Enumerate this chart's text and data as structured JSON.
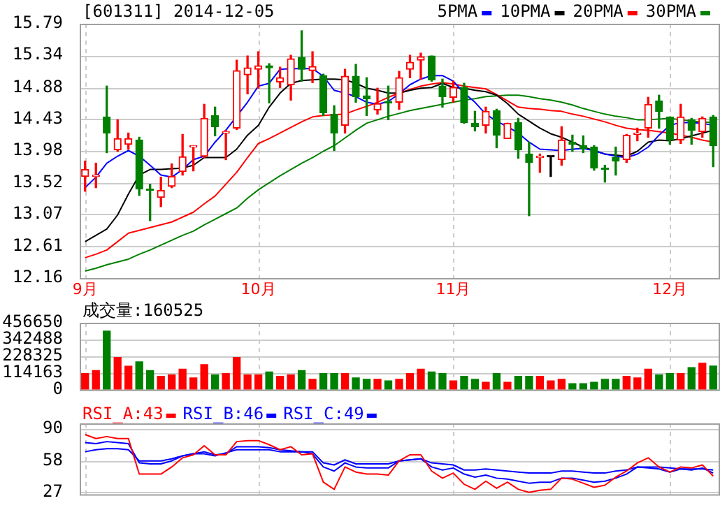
{
  "chart_data": [
    {
      "type": "candlestick",
      "title": "[601311] 2014-12-05",
      "categories": [
        "9月",
        null,
        null,
        null,
        null,
        null,
        null,
        null,
        null,
        null,
        null,
        null,
        null,
        null,
        null,
        null,
        "10月",
        null,
        null,
        null,
        null,
        null,
        null,
        null,
        null,
        null,
        null,
        null,
        null,
        null,
        null,
        null,
        null,
        null,
        "11月",
        null,
        null,
        null,
        null,
        null,
        null,
        null,
        null,
        null,
        null,
        null,
        null,
        null,
        null,
        null,
        null,
        null,
        null,
        null,
        "12月",
        null,
        null,
        null,
        null
      ],
      "ohlc": [
        [
          13.61,
          13.83,
          13.4,
          13.71
        ],
        [
          13.61,
          13.8,
          13.45,
          13.63
        ],
        [
          14.46,
          14.9,
          13.95,
          14.23
        ],
        [
          13.99,
          14.42,
          13.97,
          14.15
        ],
        [
          14.07,
          14.23,
          14.0,
          14.15
        ],
        [
          14.13,
          14.17,
          13.34,
          13.43
        ],
        [
          13.42,
          13.5,
          12.98,
          13.41
        ],
        [
          13.31,
          13.6,
          13.18,
          13.41
        ],
        [
          13.47,
          13.79,
          13.45,
          13.61
        ],
        [
          13.68,
          14.21,
          13.63,
          13.89
        ],
        [
          14.03,
          14.05,
          13.69,
          14.05
        ],
        [
          13.9,
          14.64,
          13.88,
          14.44
        ],
        [
          14.48,
          14.6,
          14.19,
          14.32
        ],
        [
          14.23,
          14.27,
          13.85,
          14.25
        ],
        [
          14.3,
          15.27,
          14.28,
          15.12
        ],
        [
          15.06,
          15.33,
          14.79,
          15.16
        ],
        [
          15.14,
          15.39,
          14.87,
          15.19
        ],
        [
          15.19,
          15.22,
          14.66,
          15.16
        ],
        [
          14.96,
          15.17,
          14.88,
          15.02
        ],
        [
          14.92,
          15.34,
          14.7,
          15.29
        ],
        [
          15.31,
          15.69,
          14.97,
          15.14
        ],
        [
          15.12,
          15.39,
          14.95,
          15.18
        ],
        [
          15.05,
          15.07,
          14.48,
          14.52
        ],
        [
          14.5,
          14.62,
          13.98,
          14.23
        ],
        [
          14.34,
          15.14,
          14.23,
          15.04
        ],
        [
          15.04,
          15.21,
          14.67,
          14.75
        ],
        [
          14.76,
          15.02,
          14.48,
          14.72
        ],
        [
          14.56,
          14.87,
          14.5,
          14.65
        ],
        [
          14.68,
          14.9,
          14.42,
          14.66
        ],
        [
          14.67,
          15.11,
          14.57,
          15.02
        ],
        [
          15.14,
          15.34,
          15.02,
          15.24
        ],
        [
          15.27,
          15.37,
          15.0,
          15.32
        ],
        [
          15.33,
          15.33,
          14.97,
          14.99
        ],
        [
          14.9,
          15.0,
          14.6,
          14.75
        ],
        [
          14.74,
          14.97,
          14.67,
          14.88
        ],
        [
          14.88,
          14.94,
          14.37,
          14.38
        ],
        [
          14.37,
          14.54,
          14.26,
          14.32
        ],
        [
          14.34,
          14.6,
          14.23,
          14.54
        ],
        [
          14.55,
          14.57,
          14.02,
          14.2
        ],
        [
          14.15,
          14.37,
          14.15,
          14.37
        ],
        [
          14.38,
          14.44,
          13.87,
          13.99
        ],
        [
          13.93,
          14.1,
          13.05,
          13.81
        ],
        [
          13.88,
          13.93,
          13.67,
          13.9
        ],
        [
          13.89,
          13.9,
          13.61,
          13.89
        ],
        [
          13.85,
          14.32,
          13.77,
          14.13
        ],
        [
          14.1,
          14.2,
          13.97,
          14.07
        ],
        [
          14.05,
          14.19,
          13.95,
          14.01
        ],
        [
          14.03,
          14.05,
          13.7,
          13.73
        ],
        [
          13.72,
          13.77,
          13.53,
          13.71
        ],
        [
          13.88,
          14.03,
          13.63,
          13.83
        ],
        [
          13.85,
          14.21,
          13.81,
          14.2
        ],
        [
          14.21,
          14.3,
          14.12,
          14.22
        ],
        [
          14.3,
          14.74,
          14.17,
          14.64
        ],
        [
          14.69,
          14.77,
          14.3,
          14.54
        ],
        [
          14.46,
          14.46,
          14.07,
          14.13
        ],
        [
          14.13,
          14.64,
          14.08,
          14.46
        ],
        [
          14.42,
          14.44,
          14.07,
          14.27
        ],
        [
          14.25,
          14.46,
          14.17,
          14.44
        ],
        [
          14.46,
          14.48,
          13.75,
          14.05
        ]
      ],
      "colors": [
        "#ff0000",
        "#ff0000",
        "#008000",
        "#ff0000",
        "#ff0000",
        "#008000",
        "#008000",
        "#ff0000",
        "#ff0000",
        "#ff0000",
        "#ff0000",
        "#ff0000",
        "#008000",
        "#ff0000",
        "#ff0000",
        "#ff0000",
        "#ff0000",
        "#008000",
        "#ff0000",
        "#ff0000",
        "#008000",
        "#ff0000",
        "#008000",
        "#008000",
        "#ff0000",
        "#008000",
        "#008000",
        "#ff0000",
        "#008000",
        "#ff0000",
        "#ff0000",
        "#ff0000",
        "#008000",
        "#008000",
        "#ff0000",
        "#008000",
        "#008000",
        "#ff0000",
        "#008000",
        "#ff0000",
        "#008000",
        "#008000",
        "#ff0000",
        "#000000",
        "#ff0000",
        "#008000",
        "#008000",
        "#008000",
        "#008000",
        "#008000",
        "#ff0000",
        "#ff0000",
        "#ff0000",
        "#008000",
        "#008000",
        "#ff0000",
        "#008000",
        "#ff0000",
        "#008000"
      ],
      "series": [
        {
          "type": "line",
          "name": "5PMA",
          "color": "#0000ff",
          "values": [
            13.45,
            13.6,
            13.8,
            13.9,
            13.98,
            13.9,
            13.77,
            13.63,
            13.6,
            13.71,
            13.85,
            13.9,
            14.1,
            14.27,
            14.47,
            14.67,
            14.9,
            14.94,
            15.14,
            15.15,
            15.15,
            15.15,
            15.04,
            14.84,
            14.8,
            14.75,
            14.67,
            14.64,
            14.68,
            14.79,
            14.92,
            15.0,
            15.05,
            15.05,
            14.97,
            14.8,
            14.67,
            14.5,
            14.4,
            14.32,
            14.23,
            14.1,
            14.0,
            13.99,
            13.98,
            14.0,
            14.01,
            13.98,
            13.93,
            13.9,
            13.88,
            13.93,
            14.03,
            14.2,
            14.34,
            14.38,
            14.38,
            14.37,
            14.34
          ]
        },
        {
          "type": "line",
          "name": "10PMA",
          "color": "#000000",
          "values": [
            12.68,
            12.77,
            12.86,
            13.06,
            13.36,
            13.63,
            13.71,
            13.71,
            13.72,
            13.73,
            13.77,
            13.88,
            13.88,
            13.88,
            14.0,
            14.2,
            14.34,
            14.6,
            14.8,
            14.94,
            14.98,
            14.99,
            15.0,
            15.0,
            14.99,
            14.94,
            14.87,
            14.84,
            14.8,
            14.8,
            14.84,
            14.87,
            14.88,
            14.94,
            14.88,
            14.87,
            14.84,
            14.82,
            14.77,
            14.65,
            14.5,
            14.4,
            14.3,
            14.22,
            14.17,
            14.1,
            14.03,
            13.98,
            13.93,
            null,
            13.9,
            13.97,
            14.1,
            14.13,
            14.12,
            14.15,
            14.19,
            14.23,
            14.27
          ]
        },
        {
          "type": "line",
          "name": "20PMA",
          "color": "#ff0000",
          "values": [
            12.45,
            12.5,
            12.56,
            12.68,
            12.8,
            12.84,
            12.88,
            12.92,
            12.96,
            13.03,
            13.1,
            13.22,
            13.33,
            13.5,
            13.67,
            13.88,
            14.08,
            14.15,
            14.23,
            14.31,
            14.39,
            14.46,
            14.48,
            14.49,
            14.5,
            14.56,
            14.61,
            14.67,
            14.74,
            14.8,
            14.85,
            14.9,
            14.93,
            14.95,
            14.93,
            14.9,
            14.88,
            14.86,
            14.78,
            14.69,
            14.6,
            14.58,
            14.57,
            14.55,
            14.54,
            14.5,
            14.47,
            14.43,
            14.39,
            14.34,
            14.3,
            14.28,
            14.27,
            14.25,
            14.23,
            14.2,
            14.17,
            14.13,
            14.1
          ]
        },
        {
          "type": "line",
          "name": "30PMA",
          "color": "#008000",
          "values": [
            12.26,
            12.3,
            12.35,
            12.39,
            12.43,
            12.5,
            12.56,
            12.63,
            12.7,
            12.77,
            12.83,
            12.92,
            13.0,
            13.08,
            13.16,
            13.3,
            13.42,
            13.52,
            13.62,
            13.71,
            13.8,
            13.88,
            13.97,
            14.05,
            14.16,
            14.27,
            14.37,
            14.42,
            14.47,
            14.51,
            14.55,
            14.58,
            14.61,
            14.64,
            14.67,
            14.7,
            14.72,
            14.75,
            14.76,
            14.77,
            14.77,
            14.75,
            14.72,
            14.7,
            14.67,
            14.63,
            14.58,
            14.54,
            14.5,
            14.47,
            14.45,
            14.42,
            14.42,
            14.43,
            14.44,
            14.42,
            14.4,
            14.39,
            14.38
          ]
        }
      ],
      "ylim": [
        12.16,
        15.79
      ],
      "yticks": [
        12.16,
        12.61,
        13.07,
        13.52,
        13.98,
        14.43,
        14.88,
        15.34,
        15.79
      ],
      "grid": true,
      "legend": "top right"
    },
    {
      "type": "bar",
      "title": "成交量:160525",
      "categories": [
        null,
        null,
        null,
        null,
        null,
        null,
        null,
        null,
        null,
        null,
        null,
        null,
        null,
        null,
        null,
        null,
        null,
        null,
        null,
        null,
        null,
        null,
        null,
        null,
        null,
        null,
        null,
        null,
        null,
        null,
        null,
        null,
        null,
        null,
        null,
        null,
        null,
        null,
        null,
        null,
        null,
        null,
        null,
        null,
        null,
        null,
        null,
        null,
        null,
        null,
        null,
        null,
        null,
        null,
        null,
        null,
        null,
        null,
        null
      ],
      "values": [
        110000,
        130000,
        400000,
        220000,
        160000,
        190000,
        130000,
        90000,
        100000,
        140000,
        80000,
        170000,
        100000,
        110000,
        220000,
        100000,
        100000,
        120000,
        90000,
        100000,
        130000,
        70000,
        110000,
        110000,
        110000,
        80000,
        70000,
        70000,
        60000,
        70000,
        110000,
        140000,
        120000,
        110000,
        60000,
        90000,
        70000,
        50000,
        110000,
        50000,
        90000,
        90000,
        90000,
        60000,
        70000,
        40000,
        40000,
        50000,
        70000,
        70000,
        90000,
        80000,
        140000,
        100000,
        110000,
        110000,
        150000,
        180000,
        160525
      ],
      "colors": [
        "#ff0000",
        "#ff0000",
        "#008000",
        "#ff0000",
        "#ff0000",
        "#008000",
        "#008000",
        "#ff0000",
        "#ff0000",
        "#ff0000",
        "#ff0000",
        "#ff0000",
        "#008000",
        "#ff0000",
        "#ff0000",
        "#ff0000",
        "#ff0000",
        "#008000",
        "#ff0000",
        "#ff0000",
        "#008000",
        "#ff0000",
        "#008000",
        "#008000",
        "#ff0000",
        "#008000",
        "#008000",
        "#ff0000",
        "#008000",
        "#ff0000",
        "#ff0000",
        "#ff0000",
        "#008000",
        "#008000",
        "#ff0000",
        "#008000",
        "#008000",
        "#ff0000",
        "#008000",
        "#ff0000",
        "#008000",
        "#008000",
        "#ff0000",
        "#ff0000",
        "#ff0000",
        "#008000",
        "#008000",
        "#008000",
        "#008000",
        "#008000",
        "#ff0000",
        "#ff0000",
        "#ff0000",
        "#008000",
        "#008000",
        "#ff0000",
        "#008000",
        "#ff0000",
        "#008000"
      ],
      "ylim": [
        0,
        456650
      ],
      "yticks": [
        0,
        114163,
        228325,
        342488,
        456650
      ],
      "grid": true,
      "tick_labels": "y"
    },
    {
      "type": "line",
      "categories": [
        null,
        null,
        null,
        null,
        null,
        null,
        null,
        null,
        null,
        null,
        null,
        null,
        null,
        null,
        null,
        null,
        null,
        null,
        null,
        null,
        null,
        null,
        null,
        null,
        null,
        null,
        null,
        null,
        null,
        null,
        null,
        null,
        null,
        null,
        null,
        null,
        null,
        null,
        null,
        null,
        null,
        null,
        null,
        null,
        null,
        null,
        null,
        null,
        null,
        null,
        null,
        null,
        null,
        null,
        null,
        null,
        null,
        null,
        null
      ],
      "series": [
        {
          "name": "RSI_A:43",
          "color": "#ff0000",
          "values": [
            84,
            80,
            82,
            80,
            80,
            45,
            45,
            45,
            52,
            61,
            64,
            73,
            64,
            64,
            77,
            78,
            78,
            74,
            69,
            72,
            64,
            65,
            37,
            30,
            52,
            47,
            45,
            45,
            44,
            58,
            64,
            64,
            48,
            41,
            46,
            35,
            30,
            38,
            31,
            37,
            30,
            27,
            29,
            30,
            41,
            40,
            36,
            32,
            34,
            42,
            48,
            56,
            61,
            52,
            47,
            52,
            51,
            54,
            43
          ]
        },
        {
          "name": "RSI_B:46",
          "color": "#0000ff",
          "values": [
            76,
            75,
            77,
            76,
            75,
            56,
            55,
            55,
            58,
            63,
            65,
            67,
            64,
            65,
            72,
            72,
            72,
            71,
            69,
            68,
            67,
            65,
            52,
            48,
            56,
            52,
            51,
            51,
            51,
            58,
            59,
            60,
            52,
            49,
            51,
            45,
            42,
            44,
            41,
            40,
            38,
            36,
            37,
            37,
            41,
            41,
            39,
            37,
            38,
            41,
            45,
            52,
            51,
            50,
            47,
            50,
            49,
            51,
            46
          ]
        },
        {
          "name": "RSI_C:49",
          "color": "#0000ff",
          "values": [
            67,
            69,
            70,
            70,
            69,
            58,
            58,
            58,
            60,
            63,
            65,
            65,
            63,
            66,
            69,
            69,
            69,
            69,
            67,
            67,
            67,
            67,
            56,
            54,
            59,
            55,
            55,
            55,
            55,
            58,
            59,
            60,
            56,
            55,
            54,
            49,
            49,
            50,
            49,
            48,
            47,
            46,
            46,
            46,
            48,
            48,
            47,
            46,
            46,
            48,
            49,
            52,
            52,
            52,
            51,
            50,
            50,
            50,
            49
          ]
        }
      ],
      "ylim": [
        25,
        95
      ],
      "yticks": [
        27,
        58,
        90
      ],
      "grid": true,
      "legend": "top left",
      "tick_labels": "y"
    }
  ]
}
